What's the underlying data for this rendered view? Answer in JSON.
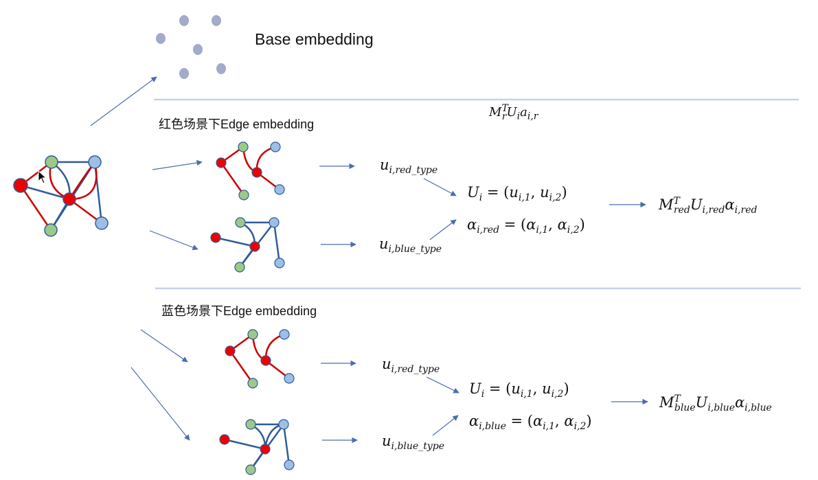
{
  "labels": {
    "base_title": "Base embedding",
    "red_section": "红色场景下Edge embedding",
    "blue_section": "蓝色场景下Edge embedding"
  },
  "formulas": {
    "top": {
      "base": "M",
      "sup": "T",
      "sub": "r",
      "rest": "U",
      "rest_sub": "i",
      "rest2": "a",
      "rest2_sub": "i,r"
    },
    "u_red_type": {
      "base": "u",
      "sub": "i,red_type"
    },
    "u_blue_type": {
      "base": "u",
      "sub": "i,blue_type"
    },
    "U_i": {
      "lhs": "U",
      "lhs_sub": "i",
      "eq": " = (",
      "a": "u",
      "a_sub": "i,1",
      "comma": ", ",
      "b": "u",
      "b_sub": "i,2",
      "close": ")"
    },
    "alpha_red": {
      "lhs": "α",
      "lhs_sub": "i,red",
      "eq": "  = (",
      "a": "α",
      "a_sub": "i,1",
      "comma": ", ",
      "b": "α",
      "b_sub": "i,2",
      "close": ")"
    },
    "alpha_blue": {
      "lhs": "α",
      "lhs_sub": "i,blue",
      "eq": "  = (",
      "a": "α",
      "a_sub": "i,1",
      "comma": ", ",
      "b": "α",
      "b_sub": "i,2",
      "close": ")"
    },
    "result_red": {
      "m": "M",
      "m_sup": "T",
      "m_sub": "red",
      "u": "U",
      "u_sub": "i,red",
      "al": "α",
      "al_sub": "i,red"
    },
    "result_blue": {
      "m": "M",
      "m_sup": "T",
      "m_sub": "blue",
      "u": "U",
      "u_sub": "i,blue",
      "al": "α",
      "al_sub": "i,blue"
    }
  },
  "colors": {
    "red_node": "#ee0000",
    "red_edge": "#cc0000",
    "blue_node": "#9dbfe6",
    "blue_edge": "#2f5c99",
    "green_node": "#9cc987",
    "grey_dot": "#a2abc9",
    "arrow": "#4a6db0",
    "divider": "#c6d3e8"
  }
}
